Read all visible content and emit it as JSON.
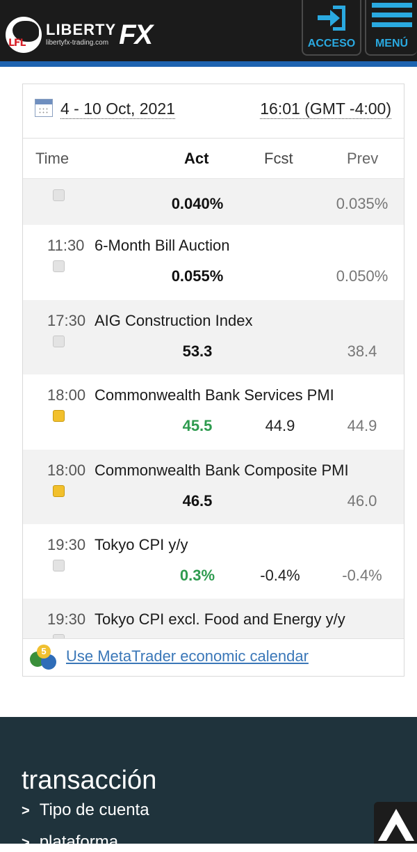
{
  "header": {
    "brand_name": "LIBERTY",
    "brand_fx": "FX",
    "brand_url": "libertyfx-trading.com",
    "logo_monogram": "LFL",
    "login_label": "ACCESO",
    "menu_label": "MENÚ",
    "accent_color": "#2aa9e0",
    "stripe_color": "#1e63b0"
  },
  "calendar": {
    "date_range": "4 - 10 Oct, 2021",
    "clock": "16:01 (GMT -4:00)",
    "columns": {
      "time": "Time",
      "act": "Act",
      "fcst": "Fcst",
      "prev": "Prev"
    },
    "rows": [
      {
        "time": "",
        "name": "",
        "impact": "low",
        "act": "0.040%",
        "act_better": false,
        "fcst": "",
        "prev": "0.035%"
      },
      {
        "time": "11:30",
        "name": "6-Month Bill Auction",
        "impact": "low",
        "act": "0.055%",
        "act_better": false,
        "fcst": "",
        "prev": "0.050%"
      },
      {
        "time": "17:30",
        "name": "AIG Construction Index",
        "impact": "low",
        "act": "53.3",
        "act_better": false,
        "fcst": "",
        "prev": "38.4"
      },
      {
        "time": "18:00",
        "name": "Commonwealth Bank Services PMI",
        "impact": "medium",
        "act": "45.5",
        "act_better": true,
        "fcst": "44.9",
        "prev": "44.9"
      },
      {
        "time": "18:00",
        "name": "Commonwealth Bank Composite PMI",
        "impact": "medium",
        "act": "46.5",
        "act_better": false,
        "fcst": "",
        "prev": "46.0"
      },
      {
        "time": "19:30",
        "name": "Tokyo CPI y/y",
        "impact": "low",
        "act": "0.3%",
        "act_better": true,
        "fcst": "-0.4%",
        "prev": "-0.4%"
      },
      {
        "time": "19:30",
        "name": "Tokyo CPI excl. Food and Energy y/y",
        "impact": "low",
        "act": "",
        "act_better": false,
        "fcst": "",
        "prev": ""
      }
    ],
    "metatrader_link": "Use MetaTrader economic calendar",
    "metatrader_badge": "5",
    "better_color": "#2e9b4f",
    "medium_impact_color": "#f2c02c"
  },
  "footer": {
    "heading": "transacción",
    "items": [
      "Tipo de cuenta",
      "plataforma"
    ],
    "chevron": ">",
    "background": "#1f333c"
  }
}
